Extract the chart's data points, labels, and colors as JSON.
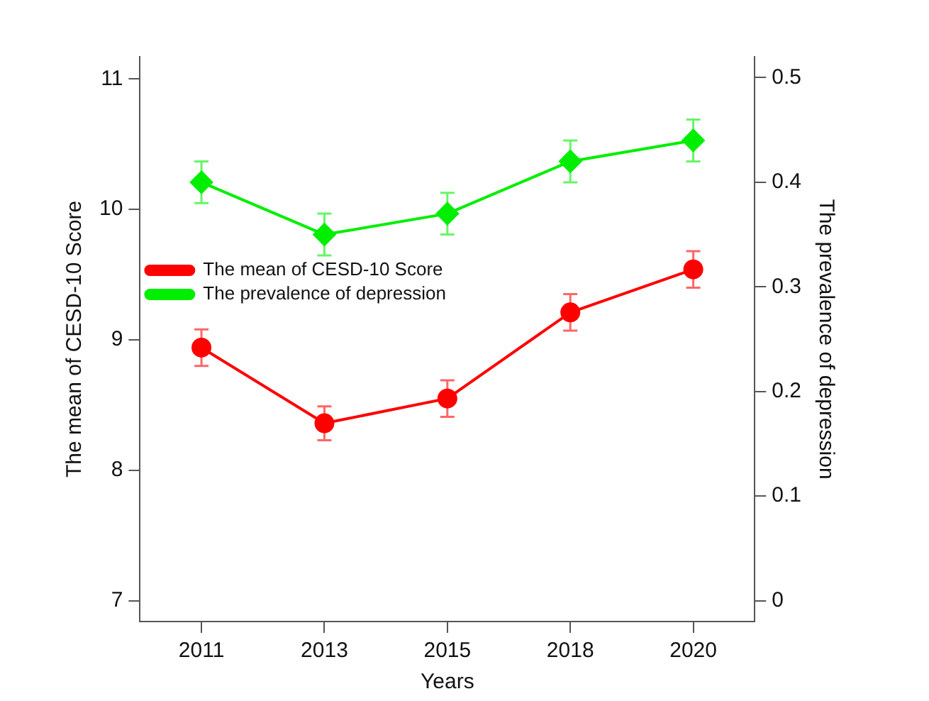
{
  "chart_data": {
    "type": "line",
    "xlabel": "Years",
    "ylabel": "The mean of CESD-10 Score",
    "y2label": "The prevalence of depression",
    "categories": [
      "2011",
      "2013",
      "2015",
      "2018",
      "2020"
    ],
    "series": [
      {
        "name": "The mean of CESD-10 Score",
        "color": "#ff0000",
        "marker": "circle",
        "values": [
          8.94,
          8.36,
          8.55,
          9.21,
          9.54
        ],
        "errors": [
          0.14,
          0.13,
          0.14,
          0.14,
          0.14
        ]
      },
      {
        "name": "The prevalence of depression",
        "color": "#00ee00",
        "marker": "diamond",
        "axis": "y2",
        "values": [
          0.4,
          0.35,
          0.37,
          0.42,
          0.44
        ],
        "errors": [
          0.02,
          0.02,
          0.02,
          0.02,
          0.02
        ]
      }
    ],
    "ylim": [
      6.84,
      11.17
    ],
    "yticks": [
      7,
      8,
      9,
      10,
      11
    ],
    "y2lim": [
      -0.02,
      0.52
    ],
    "y2ticks": [
      0,
      0.1,
      0.2,
      0.3,
      0.4,
      0.5
    ],
    "grid": false,
    "legend": "top"
  }
}
